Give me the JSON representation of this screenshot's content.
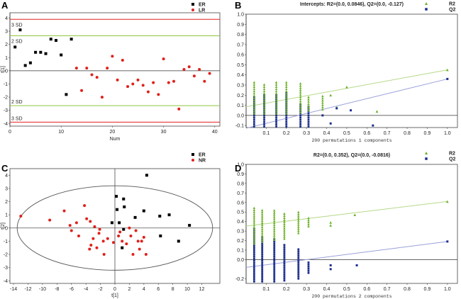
{
  "panels": {
    "A": {
      "label": "A"
    },
    "B": {
      "label": "B"
    },
    "C": {
      "label": "C"
    },
    "D": {
      "label": "D"
    }
  },
  "colors": {
    "black": "#000000",
    "red": "#e0201b",
    "green": "#6ab023",
    "blue": "#1c2f8f",
    "limit_red": "#e02020",
    "limit_green": "#8cc63f",
    "green_line": "#b7d98a",
    "blue_line": "#9aa0d8"
  },
  "chart_data": [
    {
      "panel": "A",
      "type": "scatter",
      "xlabel": "Num",
      "ylabel": "t[1]",
      "xlim": [
        0,
        41
      ],
      "ylim": [
        -4.2,
        4.4
      ],
      "xticks": [
        0,
        10,
        20,
        30,
        40
      ],
      "yticks": [
        -4,
        -3,
        -2,
        -1,
        0,
        1,
        2,
        3,
        4
      ],
      "legend": [
        "ER",
        "LR"
      ],
      "hlines": [
        {
          "y": 3.9,
          "label": "3 SD",
          "color": "red"
        },
        {
          "y": 2.65,
          "label": "2 SD",
          "color": "green"
        },
        {
          "y": -2.65,
          "label": "2 SD",
          "color": "green"
        },
        {
          "y": -3.9,
          "label": "3 SD",
          "color": "red"
        }
      ],
      "series": [
        {
          "name": "ER",
          "color": "black",
          "shape": "square",
          "points": [
            [
              1,
              1.8
            ],
            [
              2,
              3.1
            ],
            [
              3,
              0.4
            ],
            [
              4,
              0.6
            ],
            [
              5,
              1.4
            ],
            [
              6,
              1.4
            ],
            [
              7,
              1.3
            ],
            [
              8,
              2.4
            ],
            [
              9,
              2.3
            ],
            [
              10,
              1.2
            ],
            [
              11,
              -1.8
            ],
            [
              12,
              2.4
            ]
          ]
        },
        {
          "name": "LR",
          "color": "red",
          "shape": "circle",
          "points": [
            [
              13,
              0.2
            ],
            [
              14,
              -1.5
            ],
            [
              15,
              0.2
            ],
            [
              16,
              -0.3
            ],
            [
              17,
              -0.5
            ],
            [
              18,
              -2.0
            ],
            [
              19,
              0.2
            ],
            [
              20,
              1.1
            ],
            [
              21,
              -0.7
            ],
            [
              22,
              0.8
            ],
            [
              23,
              -1.2
            ],
            [
              24,
              -1.0
            ],
            [
              25,
              -0.7
            ],
            [
              26,
              -1.1
            ],
            [
              27,
              -1.6
            ],
            [
              28,
              -0.9
            ],
            [
              29,
              -1.8
            ],
            [
              30,
              0.9
            ],
            [
              31,
              -0.9
            ],
            [
              32,
              -0.8
            ],
            [
              33,
              -2.9
            ],
            [
              34,
              0.1
            ],
            [
              35,
              0.3
            ],
            [
              36,
              -0.4
            ],
            [
              37,
              0.1
            ],
            [
              38,
              -0.8
            ],
            [
              39,
              -0.2
            ]
          ]
        }
      ]
    },
    {
      "panel": "B",
      "type": "scatter",
      "title": "Intercepts: R2=(0.0, 0.0846), Q2=(0.0, -0.127)",
      "xlabel": "200 permutations 1 components",
      "xlim": [
        0,
        1.05
      ],
      "ylim": [
        -0.12,
        1.0
      ],
      "xticks": [
        0.1,
        0.2,
        0.3,
        0.4,
        0.5,
        0.6,
        0.7,
        0.8,
        0.9,
        1.0
      ],
      "xtick_labels": [
        "0.1",
        "0.2",
        "0.3",
        "0.4",
        "0.5",
        "0.6",
        "0.7",
        "0.8",
        "0.9",
        "1.0"
      ],
      "yticks": [
        -0.1,
        0.0,
        0.1,
        0.2,
        0.3,
        0.4,
        0.5,
        0.6,
        0.7,
        0.8,
        0.9,
        1.0
      ],
      "ytick_labels": [
        "-0.1",
        "0.0",
        "0.1",
        "0.2",
        "0.3",
        "0.4",
        "0.5",
        "0.6",
        "0.7",
        "0.8",
        "0.9",
        "1.0"
      ],
      "legend": [
        "R2",
        "Q2"
      ],
      "r2_line": {
        "from": [
          0,
          0.0846
        ],
        "to": [
          1.0,
          0.45
        ]
      },
      "q2_line": {
        "from": [
          0,
          -0.127
        ],
        "to": [
          1.0,
          0.36
        ]
      },
      "r2_columns": [
        {
          "x": 0.04,
          "min": 0.02,
          "max": 0.33
        },
        {
          "x": 0.09,
          "min": 0.02,
          "max": 0.32
        },
        {
          "x": 0.15,
          "min": 0.02,
          "max": 0.33
        },
        {
          "x": 0.2,
          "min": 0.02,
          "max": 0.33
        },
        {
          "x": 0.27,
          "min": 0.03,
          "max": 0.32
        },
        {
          "x": 0.31,
          "min": 0.05,
          "max": 0.2
        },
        {
          "x": 0.38,
          "min": 0.06,
          "max": 0.2
        }
      ],
      "q2_columns": [
        {
          "x": 0.04,
          "min": -0.11,
          "max": 0.18
        },
        {
          "x": 0.09,
          "min": -0.11,
          "max": 0.2
        },
        {
          "x": 0.15,
          "min": -0.11,
          "max": 0.21
        },
        {
          "x": 0.2,
          "min": -0.11,
          "max": 0.23
        },
        {
          "x": 0.27,
          "min": -0.11,
          "max": 0.12
        },
        {
          "x": 0.31,
          "min": -0.11,
          "max": 0.1
        }
      ],
      "r2_points": [
        [
          0.42,
          0.2
        ],
        [
          0.45,
          0.08
        ],
        [
          0.5,
          0.28
        ],
        [
          0.65,
          0.04
        ],
        [
          1.0,
          0.45
        ]
      ],
      "q2_points": [
        [
          0.38,
          0.0
        ],
        [
          0.42,
          -0.08
        ],
        [
          0.45,
          0.07
        ],
        [
          0.52,
          0.05
        ],
        [
          0.63,
          -0.1
        ],
        [
          1.0,
          0.36
        ]
      ]
    },
    {
      "panel": "C",
      "type": "scatter",
      "xlabel": "t[1]",
      "ylabel": "t[2]",
      "xlim": [
        -14.5,
        14.5
      ],
      "ylim": [
        -4.2,
        4.5
      ],
      "xticks": [
        -14,
        -12,
        -10,
        -8,
        -6,
        -4,
        -2,
        0,
        2,
        4,
        6,
        8,
        10,
        12
      ],
      "yticks": [
        -4,
        -3,
        -2,
        -1,
        0,
        1,
        2,
        3,
        4
      ],
      "legend": [
        "ER",
        "NR"
      ],
      "ellipse": {
        "cx": 0,
        "cy": 0,
        "rx": 13.5,
        "ry": 3.2
      },
      "series": [
        {
          "name": "ER",
          "color": "black",
          "shape": "square",
          "points": [
            [
              4.4,
              4.0
            ],
            [
              0.2,
              2.4
            ],
            [
              1.2,
              2.2
            ],
            [
              1.3,
              1.6
            ],
            [
              0.3,
              1.4
            ],
            [
              -0.4,
              0.4
            ],
            [
              4.0,
              1.3
            ],
            [
              2.8,
              0.8
            ],
            [
              0.6,
              0.4
            ],
            [
              7.5,
              1.0
            ],
            [
              6.2,
              0.9
            ],
            [
              10.3,
              0.2
            ],
            [
              8.8,
              -1.0
            ],
            [
              6.3,
              -0.6
            ],
            [
              1.2,
              -0.1
            ],
            [
              1.0,
              -1.5
            ]
          ]
        },
        {
          "name": "NR",
          "color": "red",
          "shape": "circle",
          "points": [
            [
              -13,
              0.9
            ],
            [
              -9,
              0.6
            ],
            [
              -7,
              1.3
            ],
            [
              -6.2,
              0.2
            ],
            [
              -6,
              -0.2
            ],
            [
              -5.3,
              0.4
            ],
            [
              -5,
              -0.6
            ],
            [
              -4.2,
              1.7
            ],
            [
              -3.9,
              0.7
            ],
            [
              -3.5,
              -1.6
            ],
            [
              -3.4,
              0.5
            ],
            [
              -3.3,
              -1.3
            ],
            [
              -3,
              -0.8
            ],
            [
              -2.8,
              0.1
            ],
            [
              -2.5,
              -1.5
            ],
            [
              -2.2,
              -0.4
            ],
            [
              -2.1,
              -0.1
            ],
            [
              -1.6,
              -1.0
            ],
            [
              -1.5,
              -2.0
            ],
            [
              -1.0,
              -0.8
            ],
            [
              -0.2,
              -1.1
            ],
            [
              0.5,
              -0.6
            ],
            [
              0.7,
              -0.3
            ],
            [
              1.0,
              -1.0
            ],
            [
              1.6,
              -1.2
            ],
            [
              2.0,
              0.0
            ],
            [
              2.2,
              -0.6
            ],
            [
              2.5,
              -2.0
            ],
            [
              2.9,
              -0.2
            ],
            [
              3.2,
              -1.0
            ],
            [
              3.4,
              -1.6
            ],
            [
              3.7,
              -1.0
            ],
            [
              4.0,
              -0.7
            ],
            [
              4.3,
              -2.0
            ]
          ]
        }
      ]
    },
    {
      "panel": "D",
      "type": "scatter",
      "title": "R2=(0.0, 0.352), Q2=(0.0, -0.0816)",
      "xlabel": "200 permutations 2 components",
      "xlim": [
        0,
        1.05
      ],
      "ylim": [
        -0.25,
        1.0
      ],
      "xticks": [
        0.1,
        0.2,
        0.3,
        0.4,
        0.5,
        0.6,
        0.7,
        0.8,
        0.9,
        1.0
      ],
      "xtick_labels": [
        "0.1",
        "0.2",
        "0.3",
        "0.4",
        "0.5",
        "0.6",
        "0.7",
        "0.8",
        "0.9",
        "1.0"
      ],
      "yticks": [
        -0.2,
        0.0,
        0.1,
        0.2,
        0.3,
        0.4,
        0.5,
        0.6,
        0.7,
        0.8,
        0.9,
        1.0
      ],
      "ytick_labels": [
        "-0.2",
        "0.0",
        "0.1",
        "0.2",
        "0.3",
        "0.4",
        "0.5",
        "0.6",
        "0.7",
        "0.8",
        "0.9",
        "1.0"
      ],
      "legend": [
        "R2",
        "Q2"
      ],
      "r2_line": {
        "from": [
          0,
          0.352
        ],
        "to": [
          1.0,
          0.61
        ]
      },
      "q2_line": {
        "from": [
          0,
          -0.0816
        ],
        "to": [
          1.0,
          0.19
        ]
      },
      "r2_columns": [
        {
          "x": 0.04,
          "min": 0.17,
          "max": 0.55
        },
        {
          "x": 0.08,
          "min": 0.19,
          "max": 0.53
        },
        {
          "x": 0.14,
          "min": 0.21,
          "max": 0.52
        },
        {
          "x": 0.19,
          "min": 0.22,
          "max": 0.5
        },
        {
          "x": 0.26,
          "min": 0.28,
          "max": 0.5
        },
        {
          "x": 0.31,
          "min": 0.35,
          "max": 0.44
        }
      ],
      "q2_columns": [
        {
          "x": 0.04,
          "min": -0.23,
          "max": 0.33
        },
        {
          "x": 0.08,
          "min": -0.23,
          "max": 0.25
        },
        {
          "x": 0.14,
          "min": -0.23,
          "max": 0.22
        },
        {
          "x": 0.19,
          "min": -0.22,
          "max": 0.17
        },
        {
          "x": 0.26,
          "min": -0.2,
          "max": 0.12
        },
        {
          "x": 0.31,
          "min": -0.14,
          "max": -0.03
        }
      ],
      "r2_points": [
        [
          0.42,
          0.36
        ],
        [
          0.42,
          0.39
        ],
        [
          0.54,
          0.47
        ],
        [
          1.0,
          0.61
        ]
      ],
      "q2_points": [
        [
          0.42,
          -0.06
        ],
        [
          0.42,
          -0.1
        ],
        [
          0.55,
          -0.06
        ],
        [
          1.0,
          0.19
        ]
      ]
    }
  ]
}
